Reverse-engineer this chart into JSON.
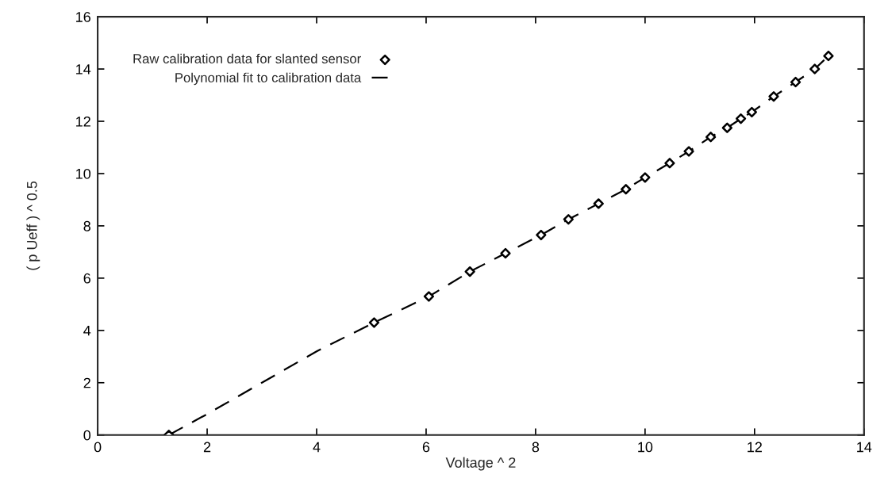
{
  "chart_data": {
    "type": "scatter",
    "xlabel": "Voltage ^ 2",
    "ylabel": "( p Ueff ) ^ 0.5",
    "xlim": [
      0,
      14
    ],
    "xticks": [
      0,
      2,
      4,
      6,
      8,
      10,
      12,
      14
    ],
    "ylim": [
      0,
      16
    ],
    "yticks": [
      0,
      2,
      4,
      6,
      8,
      10,
      12,
      14,
      16
    ],
    "grid": false,
    "legend": "top left",
    "series": [
      {
        "name": "Raw calibration data for slanted sensor",
        "color": "#000000",
        "marker": "diamond",
        "x": [
          1.3,
          5.05,
          6.05,
          6.8,
          7.45,
          8.1,
          8.6,
          9.15,
          9.65,
          10.0,
          10.45,
          10.8,
          11.2,
          11.5,
          11.75,
          11.95,
          12.35,
          12.75,
          13.1,
          13.35
        ],
        "values": [
          0,
          4.3,
          5.3,
          6.25,
          6.95,
          7.65,
          8.25,
          8.85,
          9.4,
          9.85,
          10.4,
          10.85,
          11.4,
          11.75,
          12.1,
          12.35,
          12.95,
          13.5,
          14.0,
          14.5
        ]
      },
      {
        "name": "Polynomial fit to calibration data",
        "type": "line",
        "color": "#000000",
        "line_style": "dashed",
        "x": [
          1.3,
          2,
          3,
          4,
          5.05,
          6.05,
          6.8,
          7.45,
          8.1,
          8.6,
          9.15,
          9.65,
          10.0,
          10.45,
          10.8,
          11.2,
          11.5,
          11.75,
          11.95,
          12.35,
          12.75,
          13.1,
          13.35
        ],
        "values": [
          0,
          0.8,
          2.0,
          3.2,
          4.3,
          5.3,
          6.25,
          6.95,
          7.65,
          8.25,
          8.85,
          9.4,
          9.85,
          10.4,
          10.85,
          11.4,
          11.75,
          12.1,
          12.35,
          12.95,
          13.5,
          14.0,
          14.5
        ]
      }
    ]
  }
}
